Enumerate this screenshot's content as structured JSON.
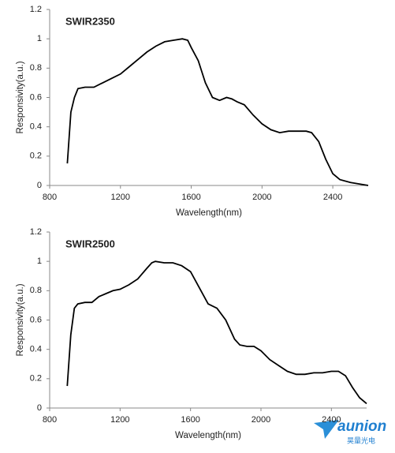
{
  "chart_data": [
    {
      "type": "line",
      "title": "SWIR2350",
      "x_label": "Wavelength(nm)",
      "y_label": "Responsivity(a.u.)",
      "xlim": [
        800,
        2600
      ],
      "xticks": [
        800,
        1200,
        1600,
        2000,
        2400
      ],
      "ylim": [
        0,
        1.2
      ],
      "yticks": [
        0,
        0.2,
        0.4,
        0.6,
        0.8,
        1,
        1.2
      ],
      "series": [
        {
          "color": "#000000",
          "x": [
            900,
            920,
            940,
            960,
            1000,
            1050,
            1100,
            1150,
            1200,
            1250,
            1300,
            1350,
            1400,
            1450,
            1500,
            1550,
            1580,
            1600,
            1640,
            1680,
            1720,
            1760,
            1800,
            1830,
            1860,
            1900,
            1950,
            2000,
            2050,
            2100,
            2150,
            2200,
            2250,
            2280,
            2320,
            2360,
            2400,
            2440,
            2500,
            2550,
            2600
          ],
          "values": [
            0.15,
            0.5,
            0.6,
            0.66,
            0.67,
            0.67,
            0.7,
            0.73,
            0.76,
            0.81,
            0.86,
            0.91,
            0.95,
            0.98,
            0.99,
            1.0,
            0.99,
            0.94,
            0.85,
            0.7,
            0.6,
            0.58,
            0.6,
            0.59,
            0.57,
            0.55,
            0.48,
            0.42,
            0.38,
            0.36,
            0.37,
            0.37,
            0.37,
            0.36,
            0.3,
            0.18,
            0.08,
            0.04,
            0.02,
            0.01,
            0
          ]
        }
      ]
    },
    {
      "type": "line",
      "title": "SWIR2500",
      "x_label": "Wavelength(nm)",
      "y_label": "Responsivity(a.u.)",
      "xlim": [
        800,
        2600
      ],
      "xticks": [
        800,
        1200,
        1600,
        2000,
        2400
      ],
      "ylim": [
        0,
        1.2
      ],
      "yticks": [
        0,
        0.2,
        0.4,
        0.6,
        0.8,
        1,
        1.2
      ],
      "series": [
        {
          "color": "#000000",
          "x": [
            900,
            920,
            940,
            960,
            1000,
            1040,
            1080,
            1120,
            1160,
            1200,
            1250,
            1300,
            1350,
            1380,
            1400,
            1450,
            1500,
            1550,
            1600,
            1650,
            1700,
            1750,
            1800,
            1850,
            1880,
            1920,
            1960,
            2000,
            2050,
            2100,
            2150,
            2200,
            2250,
            2300,
            2350,
            2400,
            2440,
            2480,
            2520,
            2560,
            2600
          ],
          "values": [
            0.15,
            0.5,
            0.68,
            0.71,
            0.72,
            0.72,
            0.76,
            0.78,
            0.8,
            0.81,
            0.84,
            0.88,
            0.95,
            0.99,
            1.0,
            0.99,
            0.99,
            0.97,
            0.93,
            0.82,
            0.71,
            0.68,
            0.6,
            0.47,
            0.43,
            0.42,
            0.42,
            0.39,
            0.33,
            0.29,
            0.25,
            0.23,
            0.23,
            0.24,
            0.24,
            0.25,
            0.25,
            0.22,
            0.14,
            0.07,
            0.03
          ]
        }
      ]
    }
  ],
  "logo": {
    "text": "aunion",
    "subtext": "昊量光电"
  }
}
